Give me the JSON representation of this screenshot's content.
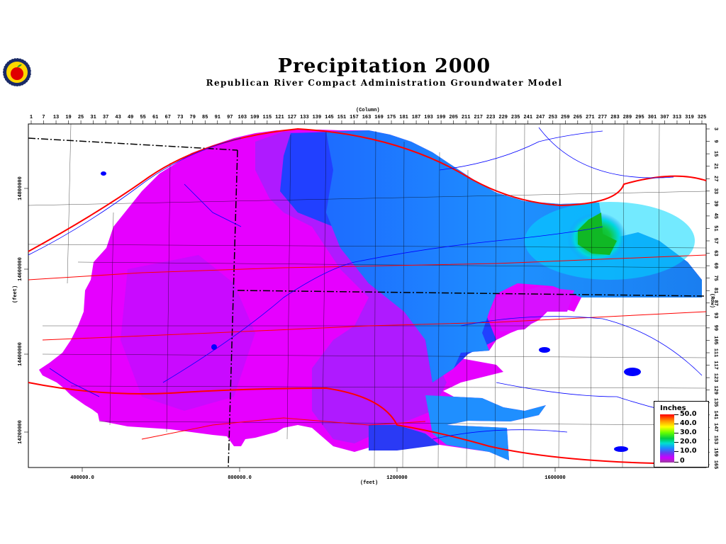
{
  "header": {
    "title": "Precipitation 2000",
    "subtitle": "Republican River Compact Administration Groundwater Model"
  },
  "axes": {
    "column_label": "(Column)",
    "row_label": "(Row)",
    "x_unit": "(feet)",
    "y_unit": "(feet)",
    "column_ticks": [
      "1",
      "7",
      "13",
      "19",
      "25",
      "31",
      "37",
      "43",
      "49",
      "55",
      "61",
      "67",
      "73",
      "79",
      "85",
      "91",
      "97",
      "103",
      "109",
      "115",
      "121",
      "127",
      "133",
      "139",
      "145",
      "151",
      "157",
      "163",
      "169",
      "175",
      "181",
      "187",
      "193",
      "199",
      "205",
      "211",
      "217",
      "223",
      "229",
      "235",
      "241",
      "247",
      "253",
      "259",
      "265",
      "271",
      "277",
      "283",
      "289",
      "295",
      "301",
      "307",
      "313",
      "319",
      "325"
    ],
    "row_ticks": [
      "3",
      "9",
      "15",
      "21",
      "27",
      "33",
      "39",
      "45",
      "51",
      "57",
      "63",
      "69",
      "75",
      "81",
      "87",
      "93",
      "99",
      "105",
      "111",
      "117",
      "123",
      "129",
      "135",
      "141",
      "147",
      "153",
      "159",
      "165"
    ],
    "x_ticks": [
      "400000.0",
      "800000.0",
      "1200000",
      "1600000"
    ],
    "y_ticks": [
      "14800000",
      "14600000",
      "14400000",
      "14200000"
    ]
  },
  "legend": {
    "title": "Inches",
    "labels": [
      "50.0",
      "40.0",
      "30.0",
      "20.0",
      "10.0",
      "0"
    ]
  },
  "colors": {
    "magenta": "#e600ff",
    "violet": "#9d1fff",
    "blue": "#1f4dff",
    "sky": "#1e90ff",
    "cyan": "#00e0ff",
    "green": "#10c020",
    "road": "#ff0000",
    "river": "#0000ff"
  },
  "icons": {
    "logo": "apple-seal-icon"
  }
}
